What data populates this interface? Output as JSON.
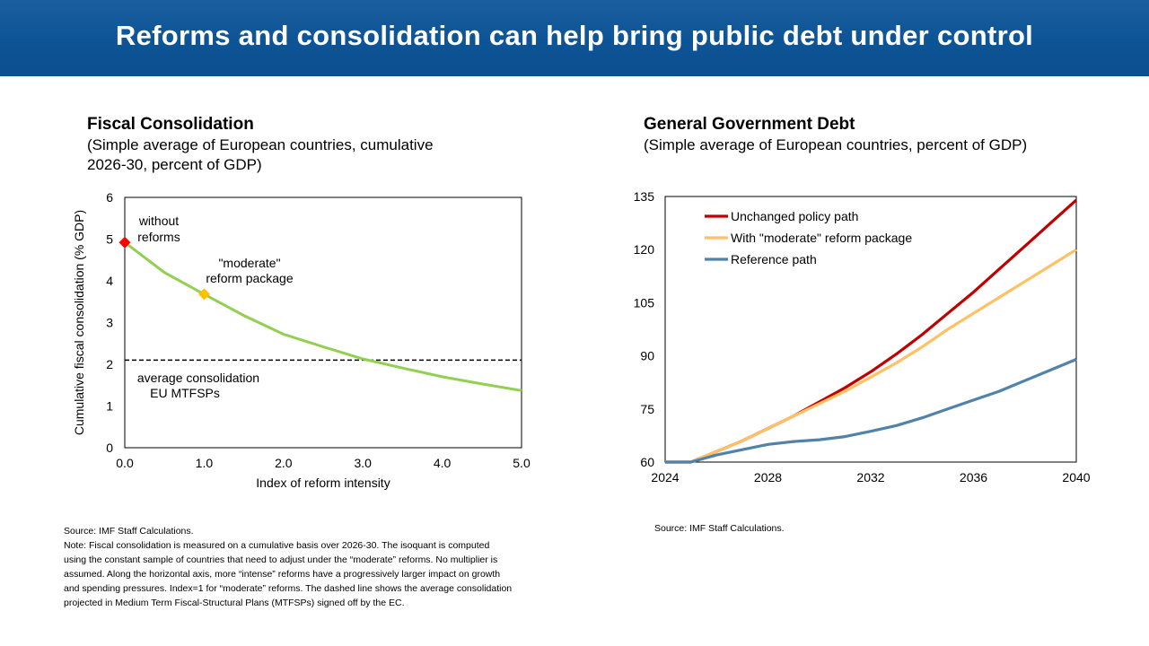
{
  "slide": {
    "title": "Reforms and consolidation can help bring public debt under control",
    "header_color": "#0d5496"
  },
  "left_chart": {
    "title": "Fiscal Consolidation",
    "subtitle_line1": "(Simple average of European countries, cumulative",
    "subtitle_line2": "2026-30, percent of GDP)",
    "source": "Source: IMF Staff Calculations.",
    "note": "Note: Fiscal consolidation is measured on a cumulative basis over 2026-30. The isoquant is computed using the constant sample of countries that need to adjust under the “moderate” reforms. No multiplier is assumed. Along the horizontal axis, more “intense” reforms have a progressively larger impact on growth and spending pressures. Index=1 for “moderate” reforms. The dashed line shows the average consolidation projected in Medium Term Fiscal-Structural Plans (MTFSPs) signed off by the EC."
  },
  "right_chart": {
    "title": "General Government Debt",
    "subtitle": "(Simple average of European countries, percent of GDP)",
    "source": "Source: IMF Staff Calculations."
  },
  "chart_data": [
    {
      "type": "line",
      "title": "Fiscal Consolidation",
      "xlabel": "Index of reform intensity",
      "ylabel": "Cumulative fiscal consolidation (% GDP)",
      "xlim": [
        0,
        5
      ],
      "ylim": [
        0,
        6
      ],
      "xticks": [
        0,
        1,
        2,
        3,
        4,
        5
      ],
      "xtick_labels": [
        "0.0",
        "1.0",
        "2.0",
        "3.0",
        "4.0",
        "5.0"
      ],
      "yticks": [
        0,
        1,
        2,
        3,
        4,
        5,
        6
      ],
      "ytick_labels": [
        "0",
        "1",
        "2",
        "3",
        "4",
        "5",
        "6"
      ],
      "series": [
        {
          "name": "Isoquant",
          "color": "#92d050",
          "x": [
            0.0,
            0.5,
            1.0,
            1.5,
            2.0,
            2.5,
            3.0,
            3.5,
            4.0,
            4.5,
            5.0
          ],
          "y": [
            4.92,
            4.2,
            3.68,
            3.17,
            2.72,
            2.42,
            2.13,
            1.91,
            1.7,
            1.53,
            1.37
          ]
        }
      ],
      "reference_line": {
        "y": 2.1,
        "style": "dashed",
        "color": "#000000"
      },
      "markers": [
        {
          "label": "without reforms",
          "x": 0.0,
          "y": 4.92,
          "color": "#ff0000",
          "shape": "diamond"
        },
        {
          "label": "\"moderate\" reform package",
          "x": 1.0,
          "y": 3.68,
          "color": "#ffc000",
          "shape": "diamond"
        }
      ],
      "annotations": [
        {
          "line1": "without",
          "line2": "reforms"
        },
        {
          "line1": "\"moderate\"",
          "line2": "reform package"
        },
        {
          "line1": "average consolidation",
          "line2": "EU MTFSPs"
        }
      ]
    },
    {
      "type": "line",
      "title": "General Government Debt",
      "xlabel": "",
      "ylabel": "",
      "xlim": [
        2024,
        2040
      ],
      "ylim": [
        60,
        135
      ],
      "xticks": [
        2024,
        2028,
        2032,
        2036,
        2040
      ],
      "xtick_labels": [
        "2024",
        "2028",
        "2032",
        "2036",
        "2040"
      ],
      "yticks": [
        60,
        75,
        90,
        105,
        120,
        135
      ],
      "ytick_labels": [
        "60",
        "75",
        "90",
        "105",
        "120",
        "135"
      ],
      "legend_position": "top-left",
      "x": [
        2024,
        2025,
        2026,
        2027,
        2028,
        2029,
        2030,
        2031,
        2032,
        2033,
        2034,
        2035,
        2036,
        2037,
        2038,
        2039,
        2040
      ],
      "series": [
        {
          "name": "Unchanged policy path",
          "color": "#c00000",
          "values": [
            60,
            60,
            63,
            66,
            69.5,
            73,
            77,
            81,
            85.5,
            90.5,
            96,
            102,
            108,
            114.5,
            121,
            127.5,
            134
          ]
        },
        {
          "name": "With \"moderate\" reform package",
          "color": "#ffc163",
          "values": [
            60,
            60,
            63,
            66,
            69.5,
            73,
            76.5,
            80,
            84,
            88,
            92.5,
            97.5,
            102,
            106.5,
            111,
            115.5,
            120
          ]
        },
        {
          "name": "Reference path",
          "color": "#5182a9",
          "values": [
            60,
            60,
            62,
            63.5,
            65,
            65.8,
            66.3,
            67.2,
            68.7,
            70.3,
            72.5,
            75,
            77.5,
            80,
            83,
            86,
            89
          ]
        }
      ]
    }
  ]
}
